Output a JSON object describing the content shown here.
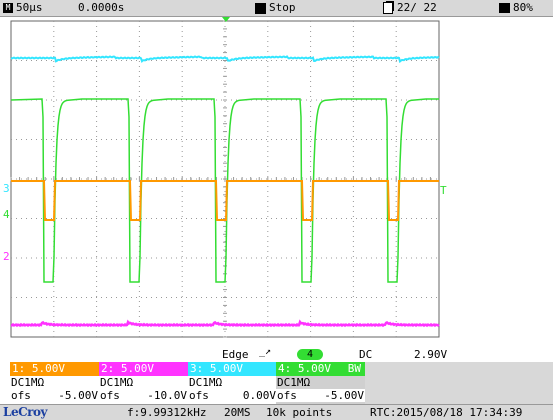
{
  "status_bar": {
    "timebase": "50µs",
    "trigger_delay": "0.0000s",
    "run_state": "Stop",
    "acquisitions": "22/  22",
    "battery": "80%",
    "mode_icon": "M"
  },
  "trigger": {
    "type": "Edge",
    "source": "4",
    "coupling": "DC",
    "level": "2.90V"
  },
  "channels": [
    {
      "label": "1: 5.00V",
      "coupling": "DC1MΩ",
      "ofs_label": "ofs",
      "ofs_value": "-5.00V",
      "color": "#ff9900"
    },
    {
      "label": "2: 5.00V",
      "coupling": "DC1MΩ",
      "ofs_label": "ofs",
      "ofs_value": "-10.0V",
      "color": "#ff33ff"
    },
    {
      "label": "3: 5.00V",
      "coupling": "DC1MΩ",
      "ofs_label": "ofs",
      "ofs_value": "0.00V",
      "color": "#33e6ff"
    },
    {
      "label": "4: 5.00V",
      "bw": "BW",
      "coupling": "DC1MΩ",
      "ofs_label": "ofs",
      "ofs_value": "-5.00V",
      "color": "#33dd33"
    }
  ],
  "markers": {
    "ch3": "3",
    "ch4": "4",
    "ch2": "2",
    "trigger_level": "T"
  },
  "bottom_bar": {
    "brand": "LeCroy",
    "frequency": "f:9.99312kHz",
    "sample_rate": "20MS",
    "record_length": "10k points",
    "rtc": "RTC:2015/08/18 17:34:39"
  },
  "colors": {
    "ch1": "#ff9900",
    "ch2": "#ff33ff",
    "ch3": "#33e6ff",
    "ch4": "#33dd33",
    "grid": "#888888",
    "panel": "#d8d8d8"
  }
}
